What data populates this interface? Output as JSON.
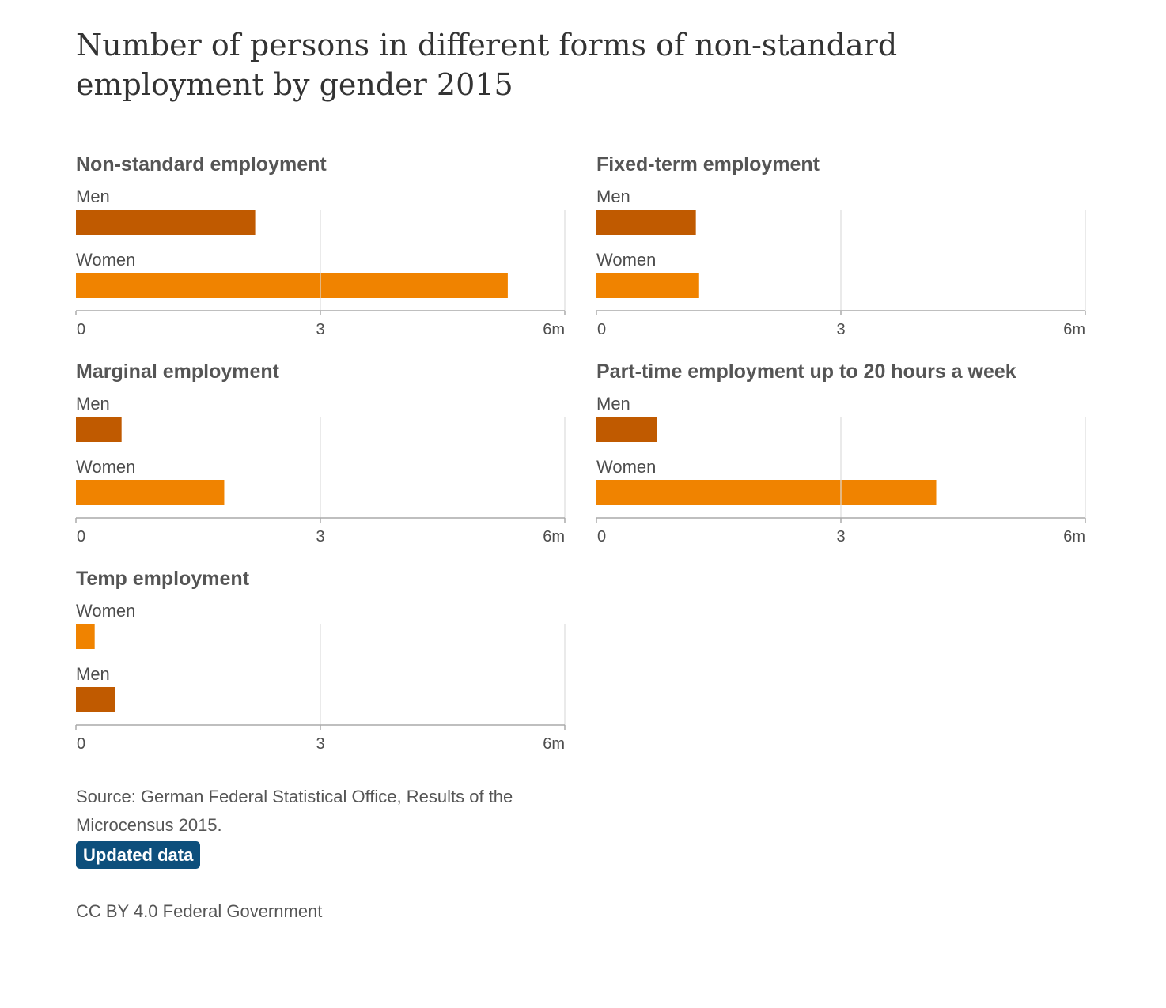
{
  "title": "Number of persons in different forms of non-standard employment by gender 2015",
  "colors": {
    "men": "#c05a00",
    "women": "#f08300",
    "grid": "#dddddd",
    "axis": "#aaaaaa",
    "badge": "#0d4f7c"
  },
  "chart_data": [
    {
      "type": "bar",
      "title": "Non-standard employment",
      "categories": [
        "Men",
        "Women"
      ],
      "values": [
        2.2,
        5.3
      ],
      "unit": "m",
      "xlim": [
        0,
        6
      ],
      "ticks": [
        "0",
        "3",
        "6m"
      ],
      "grid": true
    },
    {
      "type": "bar",
      "title": "Fixed-term employment",
      "categories": [
        "Men",
        "Women"
      ],
      "values": [
        1.22,
        1.26
      ],
      "unit": "m",
      "xlim": [
        0,
        6
      ],
      "ticks": [
        "0",
        "3",
        "6m"
      ],
      "grid": true
    },
    {
      "type": "bar",
      "title": "Marginal employment",
      "categories": [
        "Men",
        "Women"
      ],
      "values": [
        0.56,
        1.82
      ],
      "unit": "m",
      "xlim": [
        0,
        6
      ],
      "ticks": [
        "0",
        "3",
        "6m"
      ],
      "grid": true
    },
    {
      "type": "bar",
      "title": "Part-time employment up to 20 hours a week",
      "categories": [
        "Men",
        "Women"
      ],
      "values": [
        0.74,
        4.17
      ],
      "unit": "m",
      "xlim": [
        0,
        6
      ],
      "ticks": [
        "0",
        "3",
        "6m"
      ],
      "grid": true
    },
    {
      "type": "bar",
      "title": "Temp employment",
      "categories": [
        "Women",
        "Men"
      ],
      "values": [
        0.23,
        0.48
      ],
      "unit": "m",
      "xlim": [
        0,
        6
      ],
      "ticks": [
        "0",
        "3",
        "6m"
      ],
      "grid": true
    }
  ],
  "source": "Source: German Federal Statistical Office, Results of the Microcensus 2015.",
  "badge": "Updated data",
  "license": "CC BY 4.0 Federal Government"
}
